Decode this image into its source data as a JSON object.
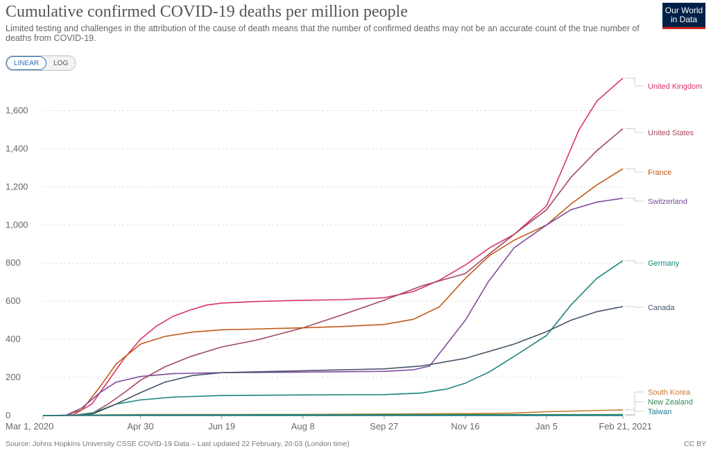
{
  "header": {
    "title": "Cumulative confirmed COVID-19 deaths per million people",
    "subtitle": "Limited testing and challenges in the attribution of the cause of death means that the number of confirmed deaths may not be an accurate count of the true number of deaths from COVID-19."
  },
  "logo": {
    "line1": "Our World",
    "line2": "in Data"
  },
  "controls": {
    "linear_label": "LINEAR",
    "log_label": "LOG",
    "active": "linear"
  },
  "footer": {
    "source": "Source: Johns Hopkins University CSSE COVID-19 Data – Last updated 22 February, 20:03 (London time)",
    "license": "CC BY"
  },
  "chart_data": {
    "type": "line",
    "x_tick_labels": [
      "Mar 1, 2020",
      "Apr 30",
      "Jun 19",
      "Aug 8",
      "Sep 27",
      "Nov 16",
      "Jan 5",
      "Feb 21, 2021"
    ],
    "x_tick_dates": [
      "2020-03-01",
      "2020-04-30",
      "2020-06-19",
      "2020-08-08",
      "2020-09-27",
      "2020-11-16",
      "2021-01-05",
      "2021-02-21"
    ],
    "y_ticks": [
      0,
      200,
      400,
      600,
      800,
      1000,
      1200,
      1400,
      1600
    ],
    "y_tick_labels": [
      "0",
      "200",
      "400",
      "600",
      "800",
      "1,000",
      "1,200",
      "1,400",
      "1,600"
    ],
    "ylim": [
      0,
      1780
    ],
    "xlim": [
      "2020-03-01",
      "2021-02-21"
    ],
    "grid": "horizontal dashed",
    "series": [
      {
        "name": "United Kingdom",
        "color": "#d6336c",
        "points": [
          [
            "2020-03-01",
            0
          ],
          [
            "2020-03-10",
            0
          ],
          [
            "2020-03-20",
            5
          ],
          [
            "2020-03-31",
            60
          ],
          [
            "2020-04-10",
            180
          ],
          [
            "2020-04-20",
            300
          ],
          [
            "2020-04-30",
            400
          ],
          [
            "2020-05-10",
            470
          ],
          [
            "2020-05-20",
            520
          ],
          [
            "2020-05-31",
            555
          ],
          [
            "2020-06-10",
            580
          ],
          [
            "2020-06-19",
            590
          ],
          [
            "2020-07-10",
            598
          ],
          [
            "2020-08-08",
            605
          ],
          [
            "2020-09-01",
            608
          ],
          [
            "2020-09-27",
            618
          ],
          [
            "2020-10-15",
            650
          ],
          [
            "2020-10-31",
            710
          ],
          [
            "2020-11-16",
            790
          ],
          [
            "2020-12-01",
            880
          ],
          [
            "2020-12-16",
            950
          ],
          [
            "2021-01-05",
            1100
          ],
          [
            "2021-01-15",
            1300
          ],
          [
            "2021-01-25",
            1500
          ],
          [
            "2021-02-05",
            1650
          ],
          [
            "2021-02-21",
            1770
          ]
        ]
      },
      {
        "name": "United States",
        "color": "#a2485a",
        "points": [
          [
            "2020-03-01",
            0
          ],
          [
            "2020-03-20",
            1
          ],
          [
            "2020-03-31",
            10
          ],
          [
            "2020-04-10",
            60
          ],
          [
            "2020-04-20",
            120
          ],
          [
            "2020-04-30",
            185
          ],
          [
            "2020-05-15",
            255
          ],
          [
            "2020-05-31",
            310
          ],
          [
            "2020-06-19",
            360
          ],
          [
            "2020-07-10",
            395
          ],
          [
            "2020-08-08",
            460
          ],
          [
            "2020-08-31",
            525
          ],
          [
            "2020-09-27",
            605
          ],
          [
            "2020-10-20",
            680
          ],
          [
            "2020-11-16",
            745
          ],
          [
            "2020-12-01",
            850
          ],
          [
            "2020-12-16",
            950
          ],
          [
            "2021-01-05",
            1080
          ],
          [
            "2021-01-20",
            1250
          ],
          [
            "2021-02-05",
            1390
          ],
          [
            "2021-02-21",
            1505
          ]
        ]
      },
      {
        "name": "France",
        "color": "#c05917",
        "points": [
          [
            "2020-03-01",
            0
          ],
          [
            "2020-03-15",
            2
          ],
          [
            "2020-03-25",
            30
          ],
          [
            "2020-04-05",
            150
          ],
          [
            "2020-04-15",
            270
          ],
          [
            "2020-04-30",
            375
          ],
          [
            "2020-05-15",
            415
          ],
          [
            "2020-06-01",
            438
          ],
          [
            "2020-06-19",
            450
          ],
          [
            "2020-07-15",
            455
          ],
          [
            "2020-08-08",
            460
          ],
          [
            "2020-09-01",
            467
          ],
          [
            "2020-09-27",
            478
          ],
          [
            "2020-10-15",
            505
          ],
          [
            "2020-10-31",
            570
          ],
          [
            "2020-11-16",
            720
          ],
          [
            "2020-12-01",
            840
          ],
          [
            "2020-12-16",
            920
          ],
          [
            "2021-01-05",
            1000
          ],
          [
            "2021-01-20",
            1110
          ],
          [
            "2021-02-05",
            1210
          ],
          [
            "2021-02-21",
            1295
          ]
        ]
      },
      {
        "name": "Switzerland",
        "color": "#7e4a9c",
        "points": [
          [
            "2020-03-01",
            0
          ],
          [
            "2020-03-15",
            1
          ],
          [
            "2020-03-25",
            40
          ],
          [
            "2020-04-05",
            120
          ],
          [
            "2020-04-15",
            175
          ],
          [
            "2020-04-30",
            205
          ],
          [
            "2020-05-20",
            220
          ],
          [
            "2020-06-19",
            225
          ],
          [
            "2020-08-08",
            228
          ],
          [
            "2020-09-27",
            232
          ],
          [
            "2020-10-15",
            240
          ],
          [
            "2020-10-25",
            260
          ],
          [
            "2020-11-05",
            380
          ],
          [
            "2020-11-16",
            500
          ],
          [
            "2020-11-30",
            700
          ],
          [
            "2020-12-16",
            880
          ],
          [
            "2021-01-05",
            1000
          ],
          [
            "2021-01-20",
            1080
          ],
          [
            "2021-02-05",
            1120
          ],
          [
            "2021-02-21",
            1140
          ]
        ]
      },
      {
        "name": "Germany",
        "color": "#18857c",
        "points": [
          [
            "2020-03-01",
            0
          ],
          [
            "2020-03-20",
            1
          ],
          [
            "2020-04-01",
            15
          ],
          [
            "2020-04-15",
            60
          ],
          [
            "2020-04-30",
            82
          ],
          [
            "2020-05-20",
            97
          ],
          [
            "2020-06-19",
            105
          ],
          [
            "2020-08-08",
            108
          ],
          [
            "2020-09-27",
            110
          ],
          [
            "2020-10-20",
            118
          ],
          [
            "2020-11-05",
            140
          ],
          [
            "2020-11-16",
            170
          ],
          [
            "2020-12-01",
            230
          ],
          [
            "2020-12-16",
            310
          ],
          [
            "2021-01-05",
            420
          ],
          [
            "2021-01-20",
            580
          ],
          [
            "2021-02-05",
            720
          ],
          [
            "2021-02-21",
            812
          ]
        ]
      },
      {
        "name": "Canada",
        "color": "#44546a",
        "points": [
          [
            "2020-03-01",
            0
          ],
          [
            "2020-03-20",
            1
          ],
          [
            "2020-04-01",
            10
          ],
          [
            "2020-04-15",
            60
          ],
          [
            "2020-04-30",
            120
          ],
          [
            "2020-05-15",
            175
          ],
          [
            "2020-06-01",
            210
          ],
          [
            "2020-06-19",
            225
          ],
          [
            "2020-08-08",
            235
          ],
          [
            "2020-09-27",
            245
          ],
          [
            "2020-10-20",
            260
          ],
          [
            "2020-11-16",
            300
          ],
          [
            "2020-12-16",
            375
          ],
          [
            "2021-01-05",
            440
          ],
          [
            "2021-01-20",
            500
          ],
          [
            "2021-02-05",
            545
          ],
          [
            "2021-02-21",
            572
          ]
        ]
      },
      {
        "name": "South Korea",
        "color": "#c7782b",
        "points": [
          [
            "2020-03-01",
            0
          ],
          [
            "2020-04-30",
            5
          ],
          [
            "2020-08-08",
            6
          ],
          [
            "2020-09-27",
            8
          ],
          [
            "2020-11-16",
            10
          ],
          [
            "2020-12-16",
            13
          ],
          [
            "2021-01-05",
            20
          ],
          [
            "2021-02-21",
            30
          ]
        ]
      },
      {
        "name": "New Zealand",
        "color": "#2e8b57",
        "points": [
          [
            "2020-03-01",
            0
          ],
          [
            "2020-05-01",
            4
          ],
          [
            "2021-02-21",
            5
          ]
        ]
      },
      {
        "name": "Taiwan",
        "color": "#1f7a8c",
        "points": [
          [
            "2020-03-01",
            0
          ],
          [
            "2020-05-01",
            0.3
          ],
          [
            "2021-02-21",
            0.4
          ]
        ]
      }
    ]
  }
}
